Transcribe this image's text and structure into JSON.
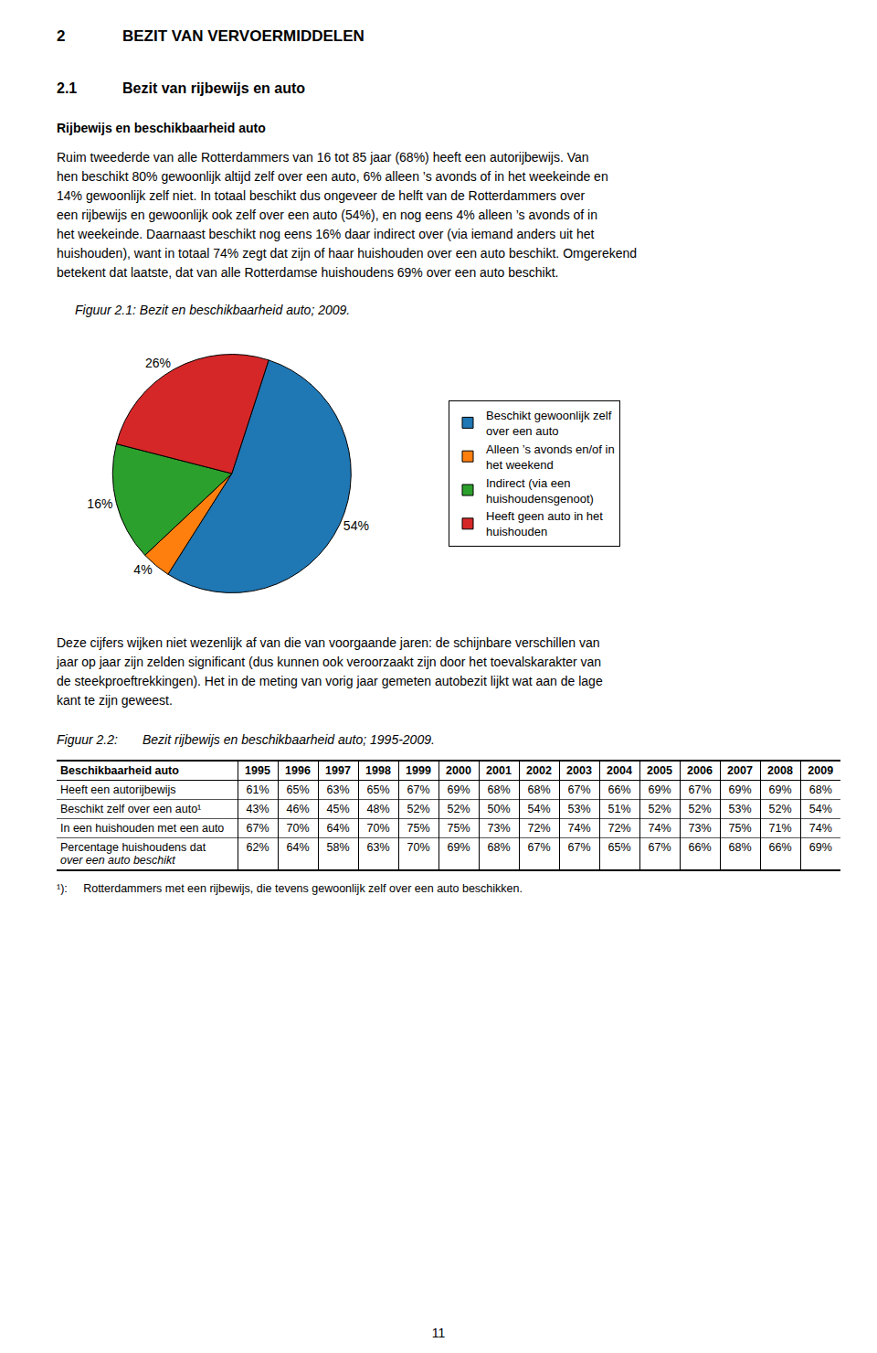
{
  "chart_data": {
    "type": "pie",
    "title": "Figuur 2.1: Bezit en beschikbaarheid auto; 2009.",
    "categories": [
      "Beschikt gewoonlijk zelf\nover een auto",
      "Alleen ’s avonds en/of in\nhet weekend",
      "Indirect (via een\nhuishoudensgenoot)",
      "Heeft geen auto in het\nhuishouden"
    ],
    "values": [
      54,
      4,
      16,
      26
    ],
    "value_labels": [
      "54%",
      "4%",
      "16%",
      "26%"
    ],
    "data_labels": true,
    "legend": "right"
  },
  "page": {
    "chapter_num": "2",
    "chapter_title": "BEZIT VAN VERVOERMIDDELEN",
    "section_num": "2.1",
    "section_title": "Bezit van rijbewijs en auto",
    "subsection_title": "Rijbewijs en beschikbaarheid auto",
    "lines_body1": [
      "Ruim tweederde van alle Rotterdammers van 16 tot 85 jaar (68%) heeft een autorijbewijs. Van",
      "hen beschikt 80% gewoonlijk altijd zelf over een auto, 6% alleen ’s avonds of in het weekeinde en",
      "14% gewoonlijk zelf niet. In totaal beschikt dus ongeveer de helft van de Rotterdammers over",
      "een rijbewijs en gewoonlijk ook zelf over een auto (54%), en nog eens 4% alleen ’s avonds of in",
      "het weekeinde. Daarnaast beschikt nog eens 16% daar indirect over (via iemand anders uit het",
      "huishouden), want in totaal 74% zegt dat zijn of haar huishouden over een auto beschikt. Omge­rekend",
      "betekent dat laatste, dat van alle Rotterdamse huishoudens 69% over een auto beschikt."
    ],
    "lines_body2": [
      "Deze cijfers wijken niet wezenlijk af van die van voorgaande jaren: de schijnbare verschillen van",
      "jaar op jaar zijn zelden significant (dus kunnen ook veroorzaakt zijn door het toevalskarakter van",
      "de steekproeftrekkingen). Het in de meting van vorig jaar gemeten autobezit lijkt wat aan de lage",
      "kant te zijn geweest."
    ],
    "figure_label_2": "Figuur 2.2:",
    "figure_title_2": "Bezit rijbewijs en beschikbaarheid auto; 1995-2009.",
    "table_header": [
      "Beschikbaarheid auto",
      "1995",
      "1996",
      "1997",
      "1998",
      "1999",
      "2000",
      "2001",
      "2002",
      "2003",
      "2004",
      "2005",
      "2006",
      "2007",
      "2008",
      "2009"
    ],
    "table_rows": [
      [
        "Heeft een autorijbewijs",
        "61%",
        "65%",
        "63%",
        "65%",
        "67%",
        "69%",
        "68%",
        "68%",
        "67%",
        "66%",
        "69%",
        "67%",
        "69%",
        "69%",
        "68%"
      ],
      [
        "Beschikt zelf over een auto¹",
        "43%",
        "46%",
        "45%",
        "48%",
        "52%",
        "52%",
        "50%",
        "54%",
        "53%",
        "51%",
        "52%",
        "52%",
        "53%",
        "52%",
        "54%"
      ],
      [
        "In een huishouden met een auto",
        "67%",
        "70%",
        "64%",
        "70%",
        "75%",
        "75%",
        "73%",
        "72%",
        "74%",
        "72%",
        "74%",
        "73%",
        "75%",
        "71%",
        "74%"
      ],
      [
        "Percentage huishoudens dat\nover een auto beschikt",
        "62%",
        "64%",
        "58%",
        "63%",
        "70%",
        "69%",
        "68%",
        "67%",
        "67%",
        "65%",
        "67%",
        "66%",
        "68%",
        "66%",
        "69%"
      ]
    ],
    "footnote": "¹):     Rotterdammers met een rijbewijs, die tevens gewoonlijk zelf over een auto beschikken.",
    "page_number": "11"
  }
}
